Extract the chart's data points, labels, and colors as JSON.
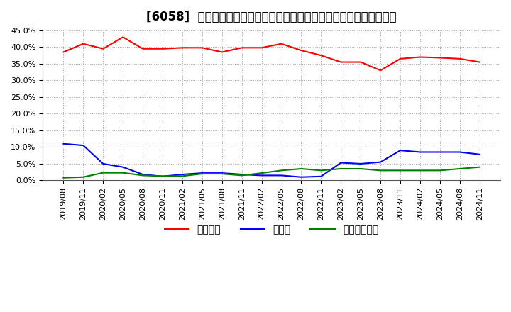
{
  "title": "[6058]  自己資本、のれん、繰延税金資産の総資産に対する比率の推移",
  "x_labels": [
    "2019/08",
    "2019/11",
    "2020/02",
    "2020/05",
    "2020/08",
    "2020/11",
    "2021/02",
    "2021/05",
    "2021/08",
    "2021/11",
    "2022/02",
    "2022/05",
    "2022/08",
    "2022/11",
    "2023/02",
    "2023/05",
    "2023/08",
    "2023/11",
    "2024/02",
    "2024/05",
    "2024/08",
    "2024/11"
  ],
  "jiko_shihon": [
    38.5,
    41.0,
    39.5,
    43.0,
    39.5,
    39.5,
    39.8,
    39.8,
    38.5,
    39.8,
    39.8,
    41.0,
    39.0,
    37.5,
    35.5,
    35.5,
    33.0,
    36.5,
    37.0,
    36.8,
    36.5,
    35.5
  ],
  "noren": [
    11.0,
    10.5,
    5.0,
    4.0,
    1.8,
    1.2,
    1.8,
    2.2,
    2.2,
    1.8,
    1.5,
    1.5,
    1.0,
    1.2,
    5.3,
    5.0,
    5.5,
    9.0,
    8.5,
    8.5,
    8.5,
    7.8
  ],
  "kurinobe_zeikin": [
    0.8,
    1.0,
    2.3,
    2.3,
    1.5,
    1.3,
    1.3,
    2.0,
    2.0,
    1.5,
    2.2,
    3.0,
    3.5,
    3.0,
    3.5,
    3.5,
    3.0,
    3.0,
    3.0,
    3.0,
    3.5,
    4.0
  ],
  "line_colors": {
    "jiko_shihon": "#ff0000",
    "noren": "#0000ff",
    "kurinobe_zeikin": "#008000"
  },
  "legend_labels": {
    "jiko_shihon": "自己資本",
    "noren": "のれん",
    "kurinobe_zeikin": "繰延税金資産"
  },
  "ylim": [
    0,
    45
  ],
  "yticks": [
    0,
    5,
    10,
    15,
    20,
    25,
    30,
    35,
    40,
    45
  ],
  "background_color": "#ffffff",
  "plot_bg_color": "#ffffff",
  "grid_color": "#aaaaaa",
  "title_fontsize": 12,
  "tick_fontsize": 8,
  "legend_fontsize": 10
}
